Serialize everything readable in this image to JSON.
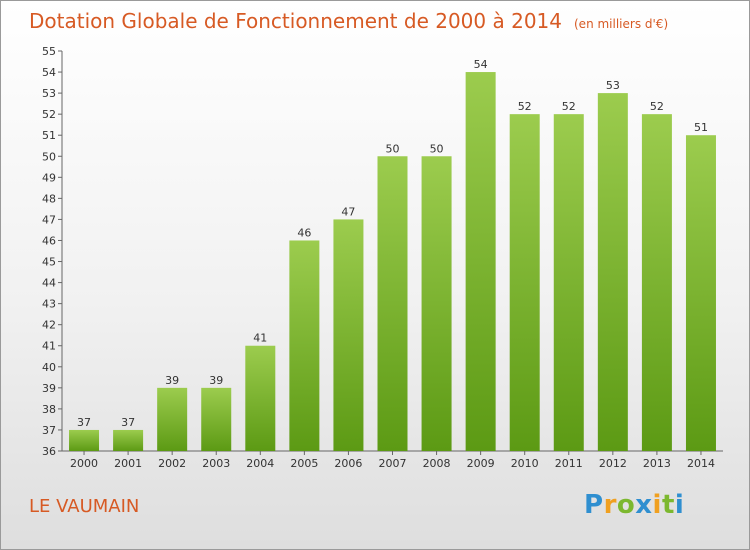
{
  "chart_data": {
    "type": "bar",
    "title": "Dotation Globale de Fonctionnement de 2000 à 2014",
    "subtitle": "(en milliers d'€)",
    "categories": [
      "2000",
      "2001",
      "2002",
      "2003",
      "2004",
      "2005",
      "2006",
      "2007",
      "2008",
      "2009",
      "2010",
      "2011",
      "2012",
      "2013",
      "2014"
    ],
    "values": [
      37,
      37,
      39,
      39,
      41,
      46,
      47,
      50,
      50,
      54,
      52,
      52,
      53,
      52,
      51
    ],
    "ylim": [
      36,
      55
    ],
    "yticks": [
      36,
      37,
      38,
      39,
      40,
      41,
      42,
      43,
      44,
      45,
      46,
      47,
      48,
      49,
      50,
      51,
      52,
      53,
      54,
      55
    ],
    "xlabel": "",
    "ylabel": "",
    "grid": false,
    "legend": "none",
    "colors": {
      "bar_top": "#9ccc4e",
      "bar_bottom": "#5c9a14",
      "title": "#d75a24"
    }
  },
  "commune": "LE VAUMAIN",
  "logo": {
    "letters": [
      "P",
      "r",
      "o",
      "x",
      "i",
      "t",
      "i"
    ],
    "colors": [
      "#2f8fd0",
      "#f0a020",
      "#7cb82f",
      "#2f8fd0",
      "#f0a020",
      "#7cb82f",
      "#2f8fd0"
    ]
  }
}
